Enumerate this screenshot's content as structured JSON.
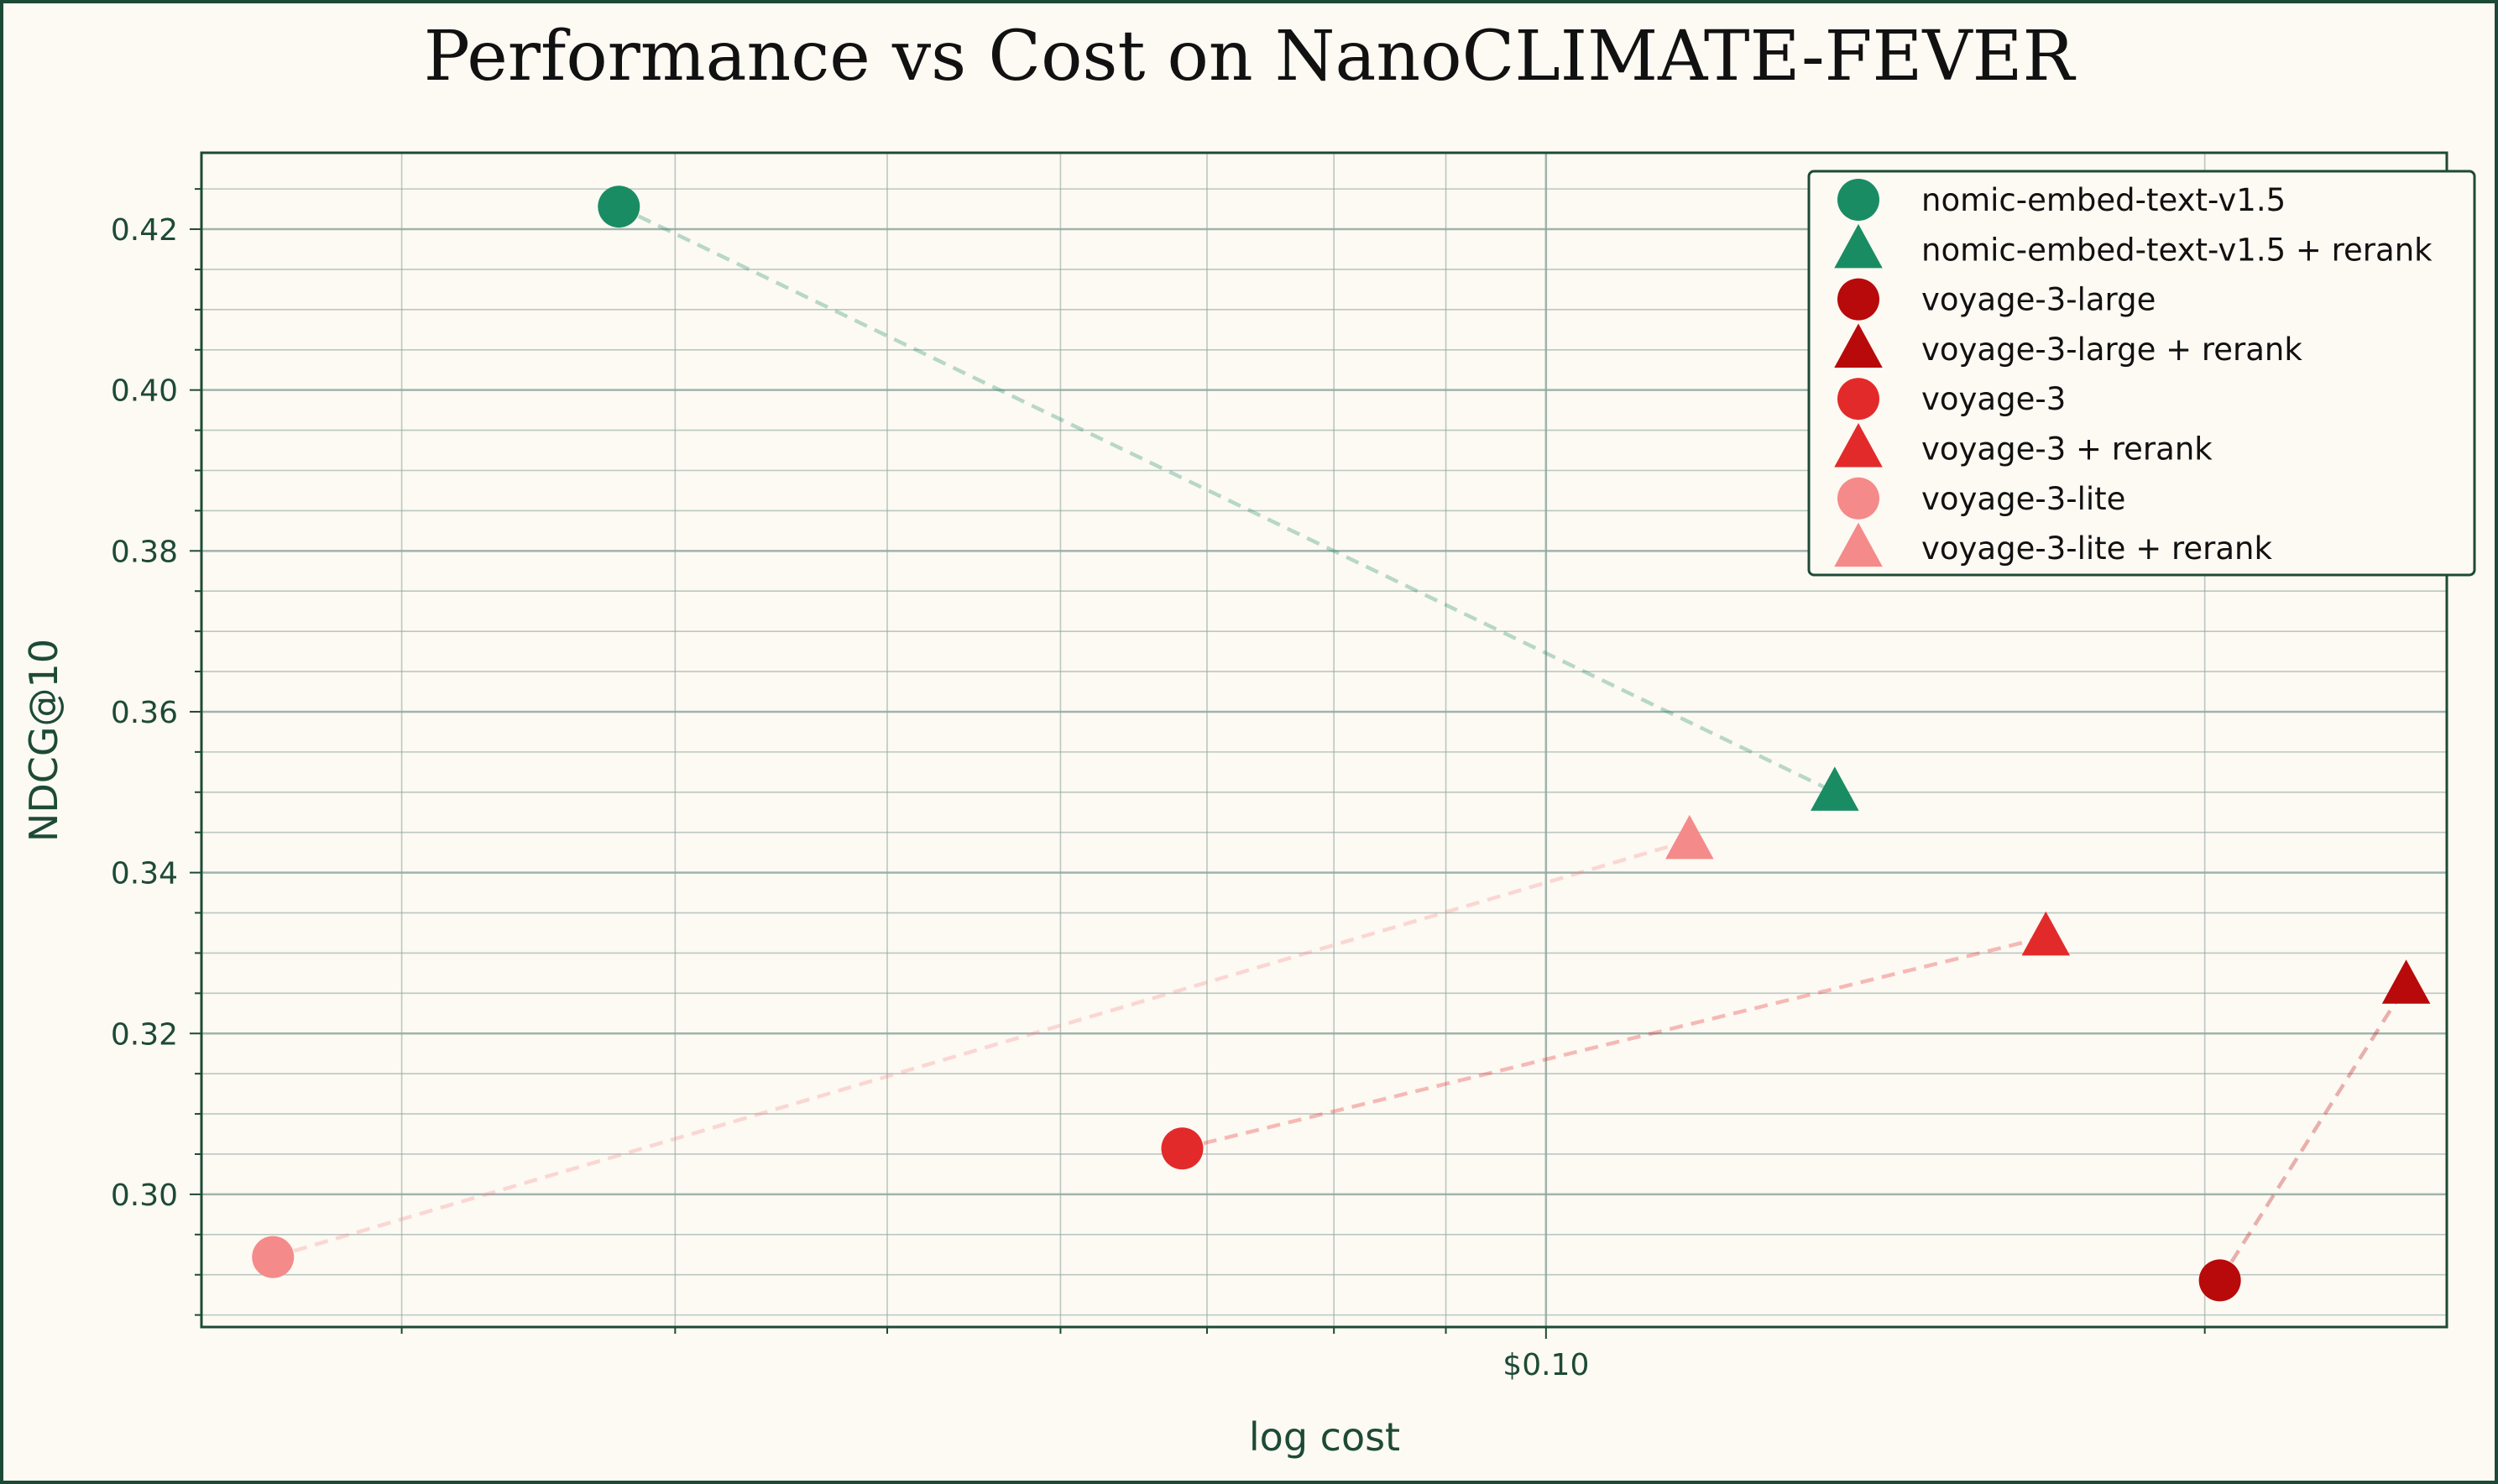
{
  "chart_data": {
    "type": "scatter",
    "title": "Performance vs Cost on NanoCLIMATE-FEVER",
    "xlabel": "log cost",
    "ylabel": "NDCG@10",
    "x_scale": "log",
    "xlim": [
      0.0243,
      0.258
    ],
    "ylim": [
      0.2835,
      0.4295
    ],
    "x_ticks": [
      {
        "value": 0.1,
        "label": "$0.10"
      }
    ],
    "y_ticks": [
      {
        "value": 0.3,
        "label": "0.30"
      },
      {
        "value": 0.32,
        "label": "0.32"
      },
      {
        "value": 0.34,
        "label": "0.34"
      },
      {
        "value": 0.36,
        "label": "0.36"
      },
      {
        "value": 0.38,
        "label": "0.38"
      },
      {
        "value": 0.4,
        "label": "0.40"
      },
      {
        "value": 0.42,
        "label": "0.42"
      }
    ],
    "grid": true,
    "legend_position": "top-right",
    "series": [
      {
        "name": "nomic-embed-text-v1.5",
        "marker": "circle",
        "color": "#1a8c64",
        "points": [
          {
            "x": 0.0377,
            "y": 0.4228
          }
        ]
      },
      {
        "name": "nomic-embed-text-v1.5 + rerank",
        "marker": "triangle",
        "color": "#1a8c64",
        "points": [
          {
            "x": 0.1355,
            "y": 0.35
          }
        ]
      },
      {
        "name": "voyage-3-large",
        "marker": "circle",
        "color": "#b80a0a",
        "points": [
          {
            "x": 0.2032,
            "y": 0.2893
          }
        ]
      },
      {
        "name": "voyage-3-large + rerank",
        "marker": "triangle",
        "color": "#b80a0a",
        "points": [
          {
            "x": 0.2472,
            "y": 0.326
          }
        ]
      },
      {
        "name": "voyage-3",
        "marker": "circle",
        "color": "#e32a2a",
        "points": [
          {
            "x": 0.0682,
            "y": 0.3057
          }
        ]
      },
      {
        "name": "voyage-3 + rerank",
        "marker": "triangle",
        "color": "#e32a2a",
        "points": [
          {
            "x": 0.1692,
            "y": 0.332
          }
        ]
      },
      {
        "name": "voyage-3-lite",
        "marker": "circle",
        "color": "#f58a8a",
        "points": [
          {
            "x": 0.0262,
            "y": 0.2922
          }
        ]
      },
      {
        "name": "voyage-3-lite + rerank",
        "marker": "triangle",
        "color": "#f58a8a",
        "points": [
          {
            "x": 0.1163,
            "y": 0.344
          }
        ]
      }
    ],
    "connectors": [
      {
        "from": "nomic-embed-text-v1.5",
        "to": "nomic-embed-text-v1.5 + rerank",
        "color": "#1a8c64"
      },
      {
        "from": "voyage-3-large",
        "to": "voyage-3-large + rerank",
        "color": "#b80a0a"
      },
      {
        "from": "voyage-3",
        "to": "voyage-3 + rerank",
        "color": "#e32a2a"
      },
      {
        "from": "voyage-3-lite",
        "to": "voyage-3-lite + rerank",
        "color": "#f58a8a"
      }
    ],
    "colors": {
      "frame": "#1d4a36",
      "background": "#fdf9f3",
      "grid": "#8fa8a0"
    }
  }
}
